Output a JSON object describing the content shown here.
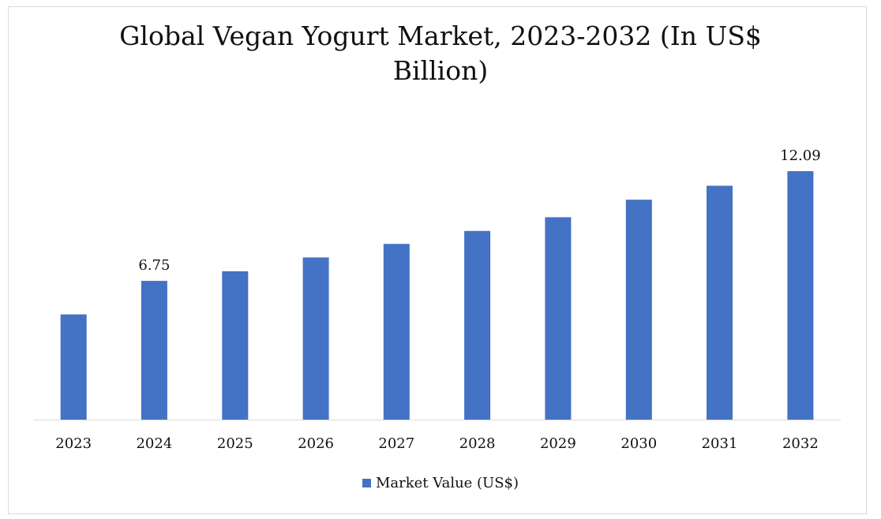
{
  "chart_data": {
    "type": "bar",
    "title": "Global Vegan Yogurt Market, 2023-2032 (In US$ Billion)",
    "categories": [
      "2023",
      "2024",
      "2025",
      "2026",
      "2027",
      "2028",
      "2029",
      "2030",
      "2031",
      "2032"
    ],
    "series": [
      {
        "name": "Market Value (US$)",
        "values": [
          5.12,
          6.75,
          7.22,
          7.89,
          8.55,
          9.18,
          9.85,
          10.7,
          11.38,
          12.09
        ],
        "color": "#4472c4"
      }
    ],
    "data_labels": [
      {
        "category": "2024",
        "text": "6.75"
      },
      {
        "category": "2032",
        "text": "12.09"
      }
    ],
    "ylim": [
      0,
      13.0
    ],
    "grid": false,
    "legend_position": "bottom",
    "xlabel": "",
    "ylabel": ""
  }
}
